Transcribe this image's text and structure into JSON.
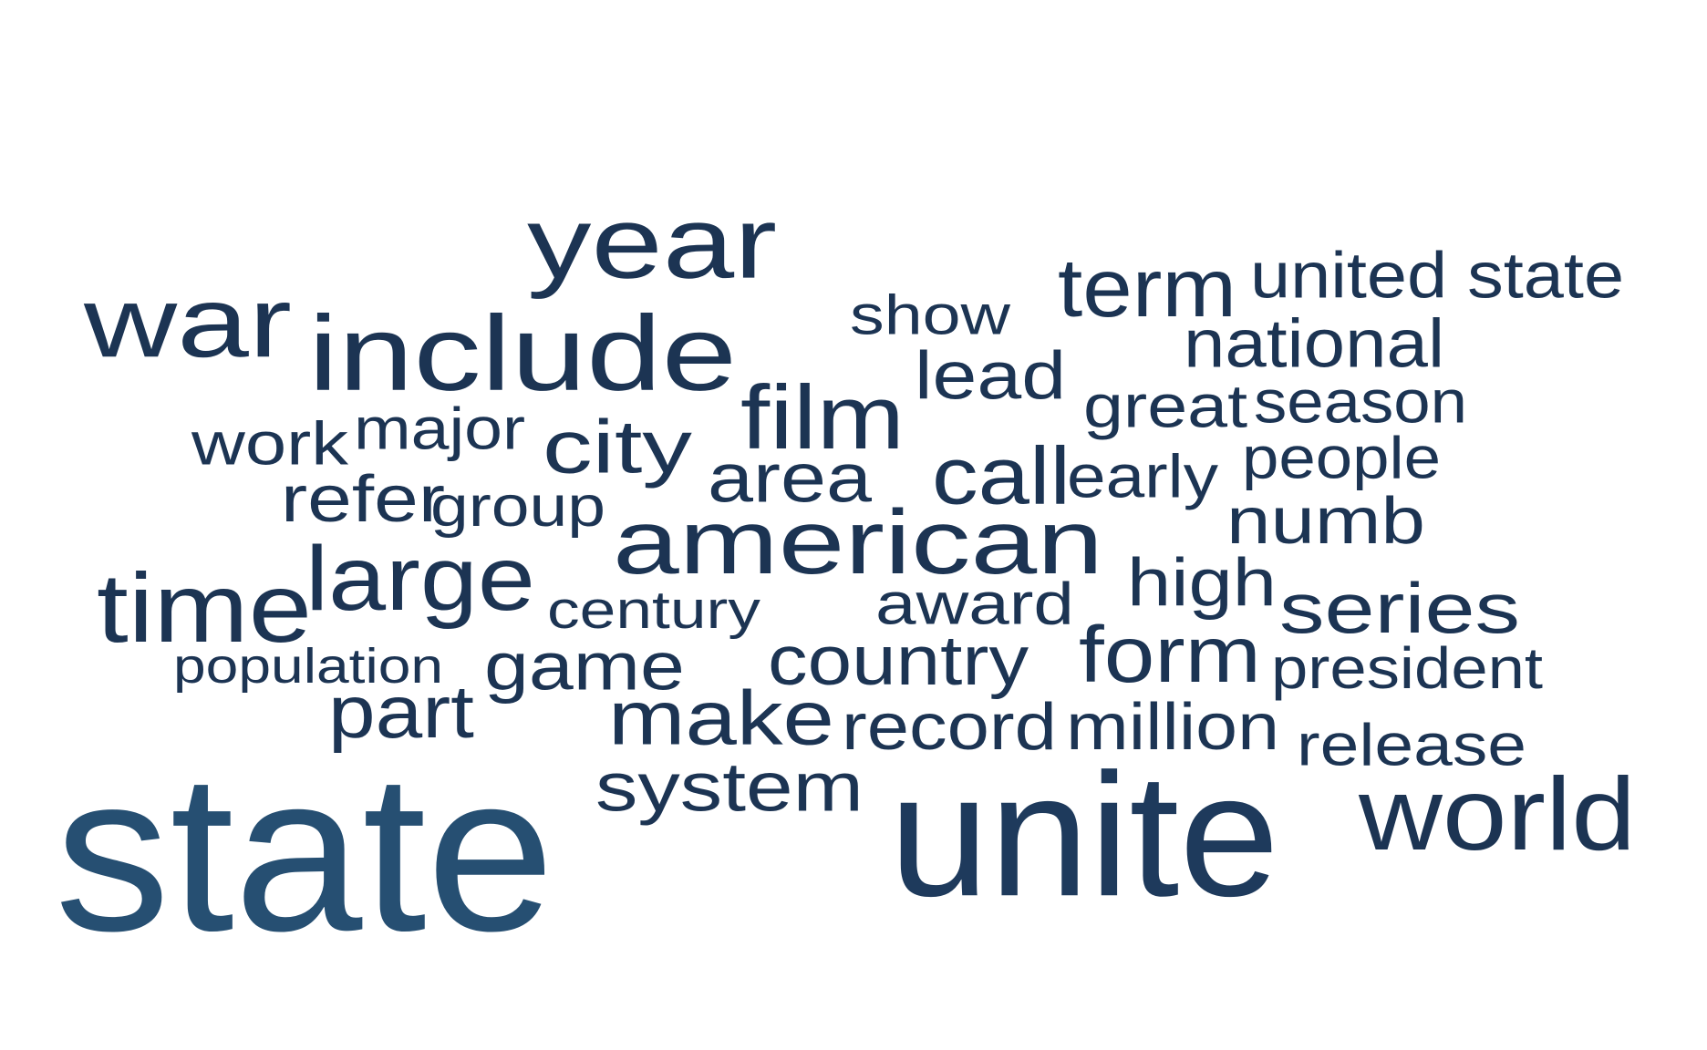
{
  "words": [
    {
      "text": "state",
      "color": "#264f72"
    },
    {
      "text": "unite",
      "color": "#1e3a5c"
    },
    {
      "text": "year",
      "color": "#1c3453"
    },
    {
      "text": "include",
      "color": "#1c3453"
    },
    {
      "text": "war",
      "color": "#1c3453"
    },
    {
      "text": "american",
      "color": "#1c3453"
    },
    {
      "text": "world",
      "color": "#1c3453"
    },
    {
      "text": "time",
      "color": "#1c3453"
    },
    {
      "text": "large",
      "color": "#1c3453"
    },
    {
      "text": "film",
      "color": "#1c3453"
    },
    {
      "text": "term",
      "color": "#1c3453"
    },
    {
      "text": "call",
      "color": "#1c3453"
    },
    {
      "text": "form",
      "color": "#1c3453"
    },
    {
      "text": "city",
      "color": "#1c3453"
    },
    {
      "text": "make",
      "color": "#1c3453"
    },
    {
      "text": "series",
      "color": "#1c3453"
    },
    {
      "text": "united state",
      "color": "#1c3453"
    },
    {
      "text": "national",
      "color": "#1c3453"
    },
    {
      "text": "part",
      "color": "#1c3453"
    },
    {
      "text": "country",
      "color": "#1c3453"
    },
    {
      "text": "system",
      "color": "#1c3453"
    },
    {
      "text": "game",
      "color": "#1c3453"
    },
    {
      "text": "area",
      "color": "#1c3453"
    },
    {
      "text": "lead",
      "color": "#1c3453"
    },
    {
      "text": "high",
      "color": "#1c3453"
    },
    {
      "text": "numb",
      "color": "#1c3453"
    },
    {
      "text": "million",
      "color": "#1c3453"
    },
    {
      "text": "record",
      "color": "#1c3453"
    },
    {
      "text": "great",
      "color": "#1c3453"
    },
    {
      "text": "season",
      "color": "#1c3453"
    },
    {
      "text": "early",
      "color": "#1c3453"
    },
    {
      "text": "people",
      "color": "#1c3453"
    },
    {
      "text": "release",
      "color": "#1c3453"
    },
    {
      "text": "president",
      "color": "#1c3453"
    },
    {
      "text": "award",
      "color": "#1c3453"
    },
    {
      "text": "refer",
      "color": "#1c3453"
    },
    {
      "text": "work",
      "color": "#1c3453"
    },
    {
      "text": "major",
      "color": "#1c3453"
    },
    {
      "text": "show",
      "color": "#1c3453"
    },
    {
      "text": "group",
      "color": "#1c3453"
    },
    {
      "text": "century",
      "color": "#1c3453"
    },
    {
      "text": "population",
      "color": "#1c3453"
    }
  ]
}
